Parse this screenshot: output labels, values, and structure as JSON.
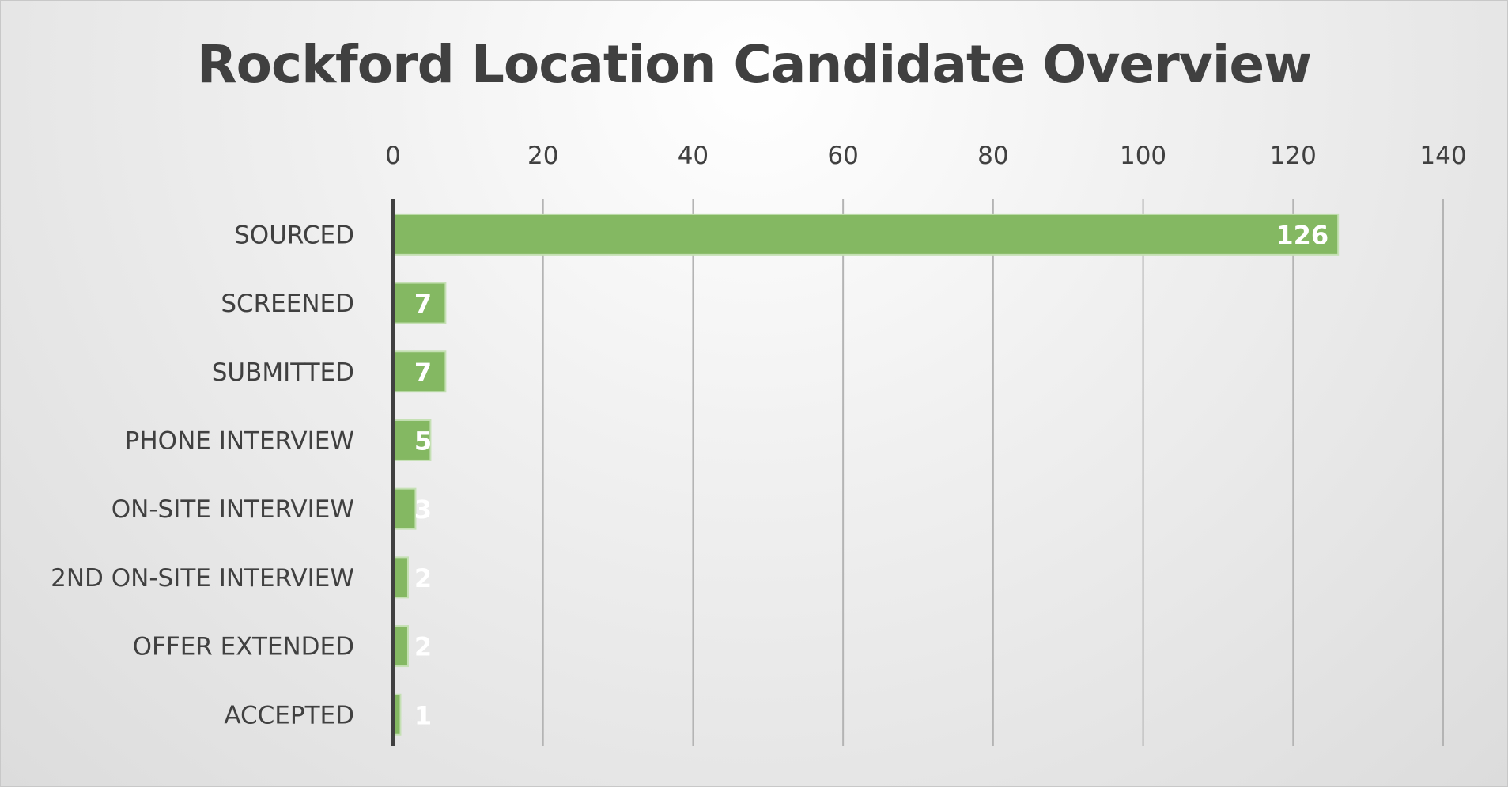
{
  "chart_data": {
    "type": "bar",
    "orientation": "horizontal",
    "title": "Rockford Location Candidate Overview",
    "categories": [
      "SOURCED",
      "SCREENED",
      "SUBMITTED",
      "PHONE INTERVIEW",
      "ON-SITE INTERVIEW",
      "2ND ON-SITE INTERVIEW",
      "OFFER EXTENDED",
      "ACCEPTED"
    ],
    "values": [
      126,
      7,
      7,
      5,
      3,
      2,
      2,
      1
    ],
    "data_labels": [
      "126",
      "7",
      "7",
      "5",
      "3",
      "2",
      "2",
      "1"
    ],
    "xlim": [
      0,
      140
    ],
    "x_ticks": [
      "0",
      "20",
      "40",
      "60",
      "80",
      "100",
      "120",
      "140"
    ],
    "x_axis_position": "top",
    "grid": true,
    "bar_color": "#84b862",
    "label_color": "#ffffff",
    "text_color": "#404040"
  }
}
